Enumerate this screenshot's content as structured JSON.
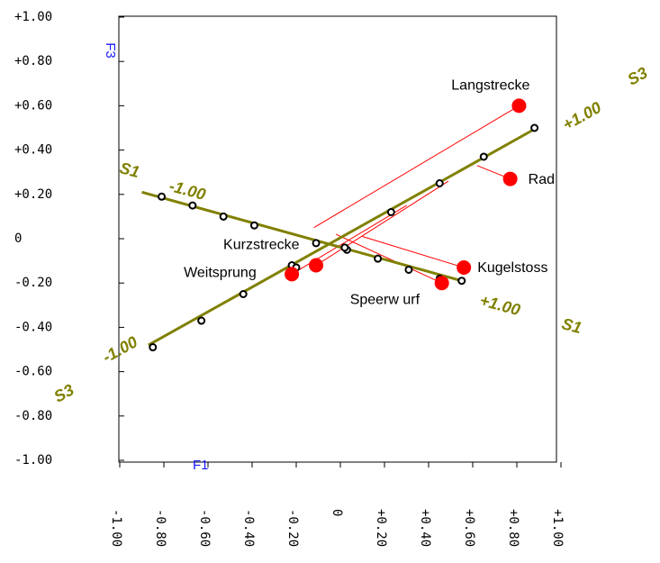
{
  "chart_data": {
    "type": "scatter",
    "title": "",
    "xlabel": "F1",
    "ylabel": "F3",
    "xlim": [
      -1.0,
      1.0
    ],
    "ylim": [
      -1.0,
      1.0
    ],
    "x_ticks": [
      -1.0,
      -0.8,
      -0.6,
      -0.4,
      -0.2,
      0,
      0.2,
      0.4,
      0.6,
      0.8,
      1.0
    ],
    "y_ticks": [
      1.0,
      0.8,
      0.6,
      0.4,
      0.2,
      0,
      -0.2,
      -0.4,
      -0.6,
      -0.8,
      -1.0
    ],
    "x_tick_labels": [
      "-1.00",
      "-0.80",
      "-0.60",
      "-0.40",
      "-0.20",
      "0",
      "+0.20",
      "+0.40",
      "+0.60",
      "+0.80",
      "+1.00"
    ],
    "y_tick_labels": [
      "+1.00",
      "+0.80",
      "+0.60",
      "+0.40",
      "+0.20",
      "0",
      "-0.20",
      "-0.40",
      "-0.60",
      "-0.80",
      "-1.00"
    ],
    "grid": false,
    "colors": {
      "point": "#ff0000",
      "projection": "#ff0000",
      "axis_line": "#808000",
      "axis_label": "#808000",
      "ref_label": "#1a1aff"
    },
    "points": [
      {
        "name": "Langstrecke",
        "x": 0.81,
        "y": 0.6
      },
      {
        "name": "Rad",
        "x": 0.77,
        "y": 0.27
      },
      {
        "name": "Kugelstoss",
        "x": 0.56,
        "y": -0.13
      },
      {
        "name": "Speerwurf",
        "x": 0.46,
        "y": -0.2
      },
      {
        "name": "Kurzstrecke",
        "x": -0.11,
        "y": -0.12
      },
      {
        "name": "Weitsprung",
        "x": -0.22,
        "y": -0.16
      }
    ],
    "label_texts": {
      "Langstrecke": "Langstrecke",
      "Rad": "Rad",
      "Kugelstoss": "Kugelstoss",
      "Speerwurf": "Speerw urf",
      "Kurzstrecke": "Kurzstrecke",
      "Weitsprung": "Weitsprung"
    },
    "biplot_axes": [
      {
        "name": "S1",
        "start": [
          -0.9,
          0.21
        ],
        "end": [
          0.55,
          -0.19
        ],
        "tick_points": [
          [
            -0.81,
            0.19
          ],
          [
            -0.67,
            0.15
          ],
          [
            -0.53,
            0.1
          ],
          [
            -0.39,
            0.06
          ],
          [
            -0.11,
            -0.02
          ],
          [
            0.03,
            -0.05
          ],
          [
            0.17,
            -0.09
          ],
          [
            0.31,
            -0.14
          ],
          [
            0.45,
            -0.18
          ],
          [
            0.55,
            -0.19
          ]
        ],
        "min_label": "-1.00",
        "max_label": "+1.00",
        "start_name_label": "S1",
        "end_name_label": "S1"
      },
      {
        "name": "S3",
        "start": [
          -0.87,
          -0.48
        ],
        "end": [
          0.89,
          0.5
        ],
        "tick_points": [
          [
            -0.85,
            -0.49
          ],
          [
            -0.63,
            -0.37
          ],
          [
            -0.44,
            -0.25
          ],
          [
            -0.22,
            -0.12
          ],
          [
            -0.2,
            -0.13
          ],
          [
            -0.11,
            -0.12
          ],
          [
            0.02,
            -0.04
          ],
          [
            0.23,
            0.12
          ],
          [
            0.45,
            0.25
          ],
          [
            0.65,
            0.37
          ],
          [
            0.88,
            0.5
          ]
        ],
        "min_label": "-1.00",
        "max_label": "+1.00",
        "start_name_label": "S3",
        "end_name_label": "S3"
      }
    ],
    "projections": [
      {
        "point": "Langstrecke",
        "to": [
          -0.12,
          0.05
        ]
      },
      {
        "point": "Rad",
        "to": [
          0.62,
          0.33
        ]
      },
      {
        "point": "Kugelstoss",
        "to": [
          0.1,
          0.01
        ]
      },
      {
        "point": "Speerwurf",
        "to": [
          -0.02,
          0.02
        ]
      },
      {
        "point": "Kurzstrecke",
        "to": [
          0.49,
          0.26
        ]
      },
      {
        "point": "Weitsprung",
        "to": [
          0.3,
          0.15
        ]
      }
    ],
    "axis_ref_labels": {
      "x": "F1",
      "y": "F3"
    }
  }
}
